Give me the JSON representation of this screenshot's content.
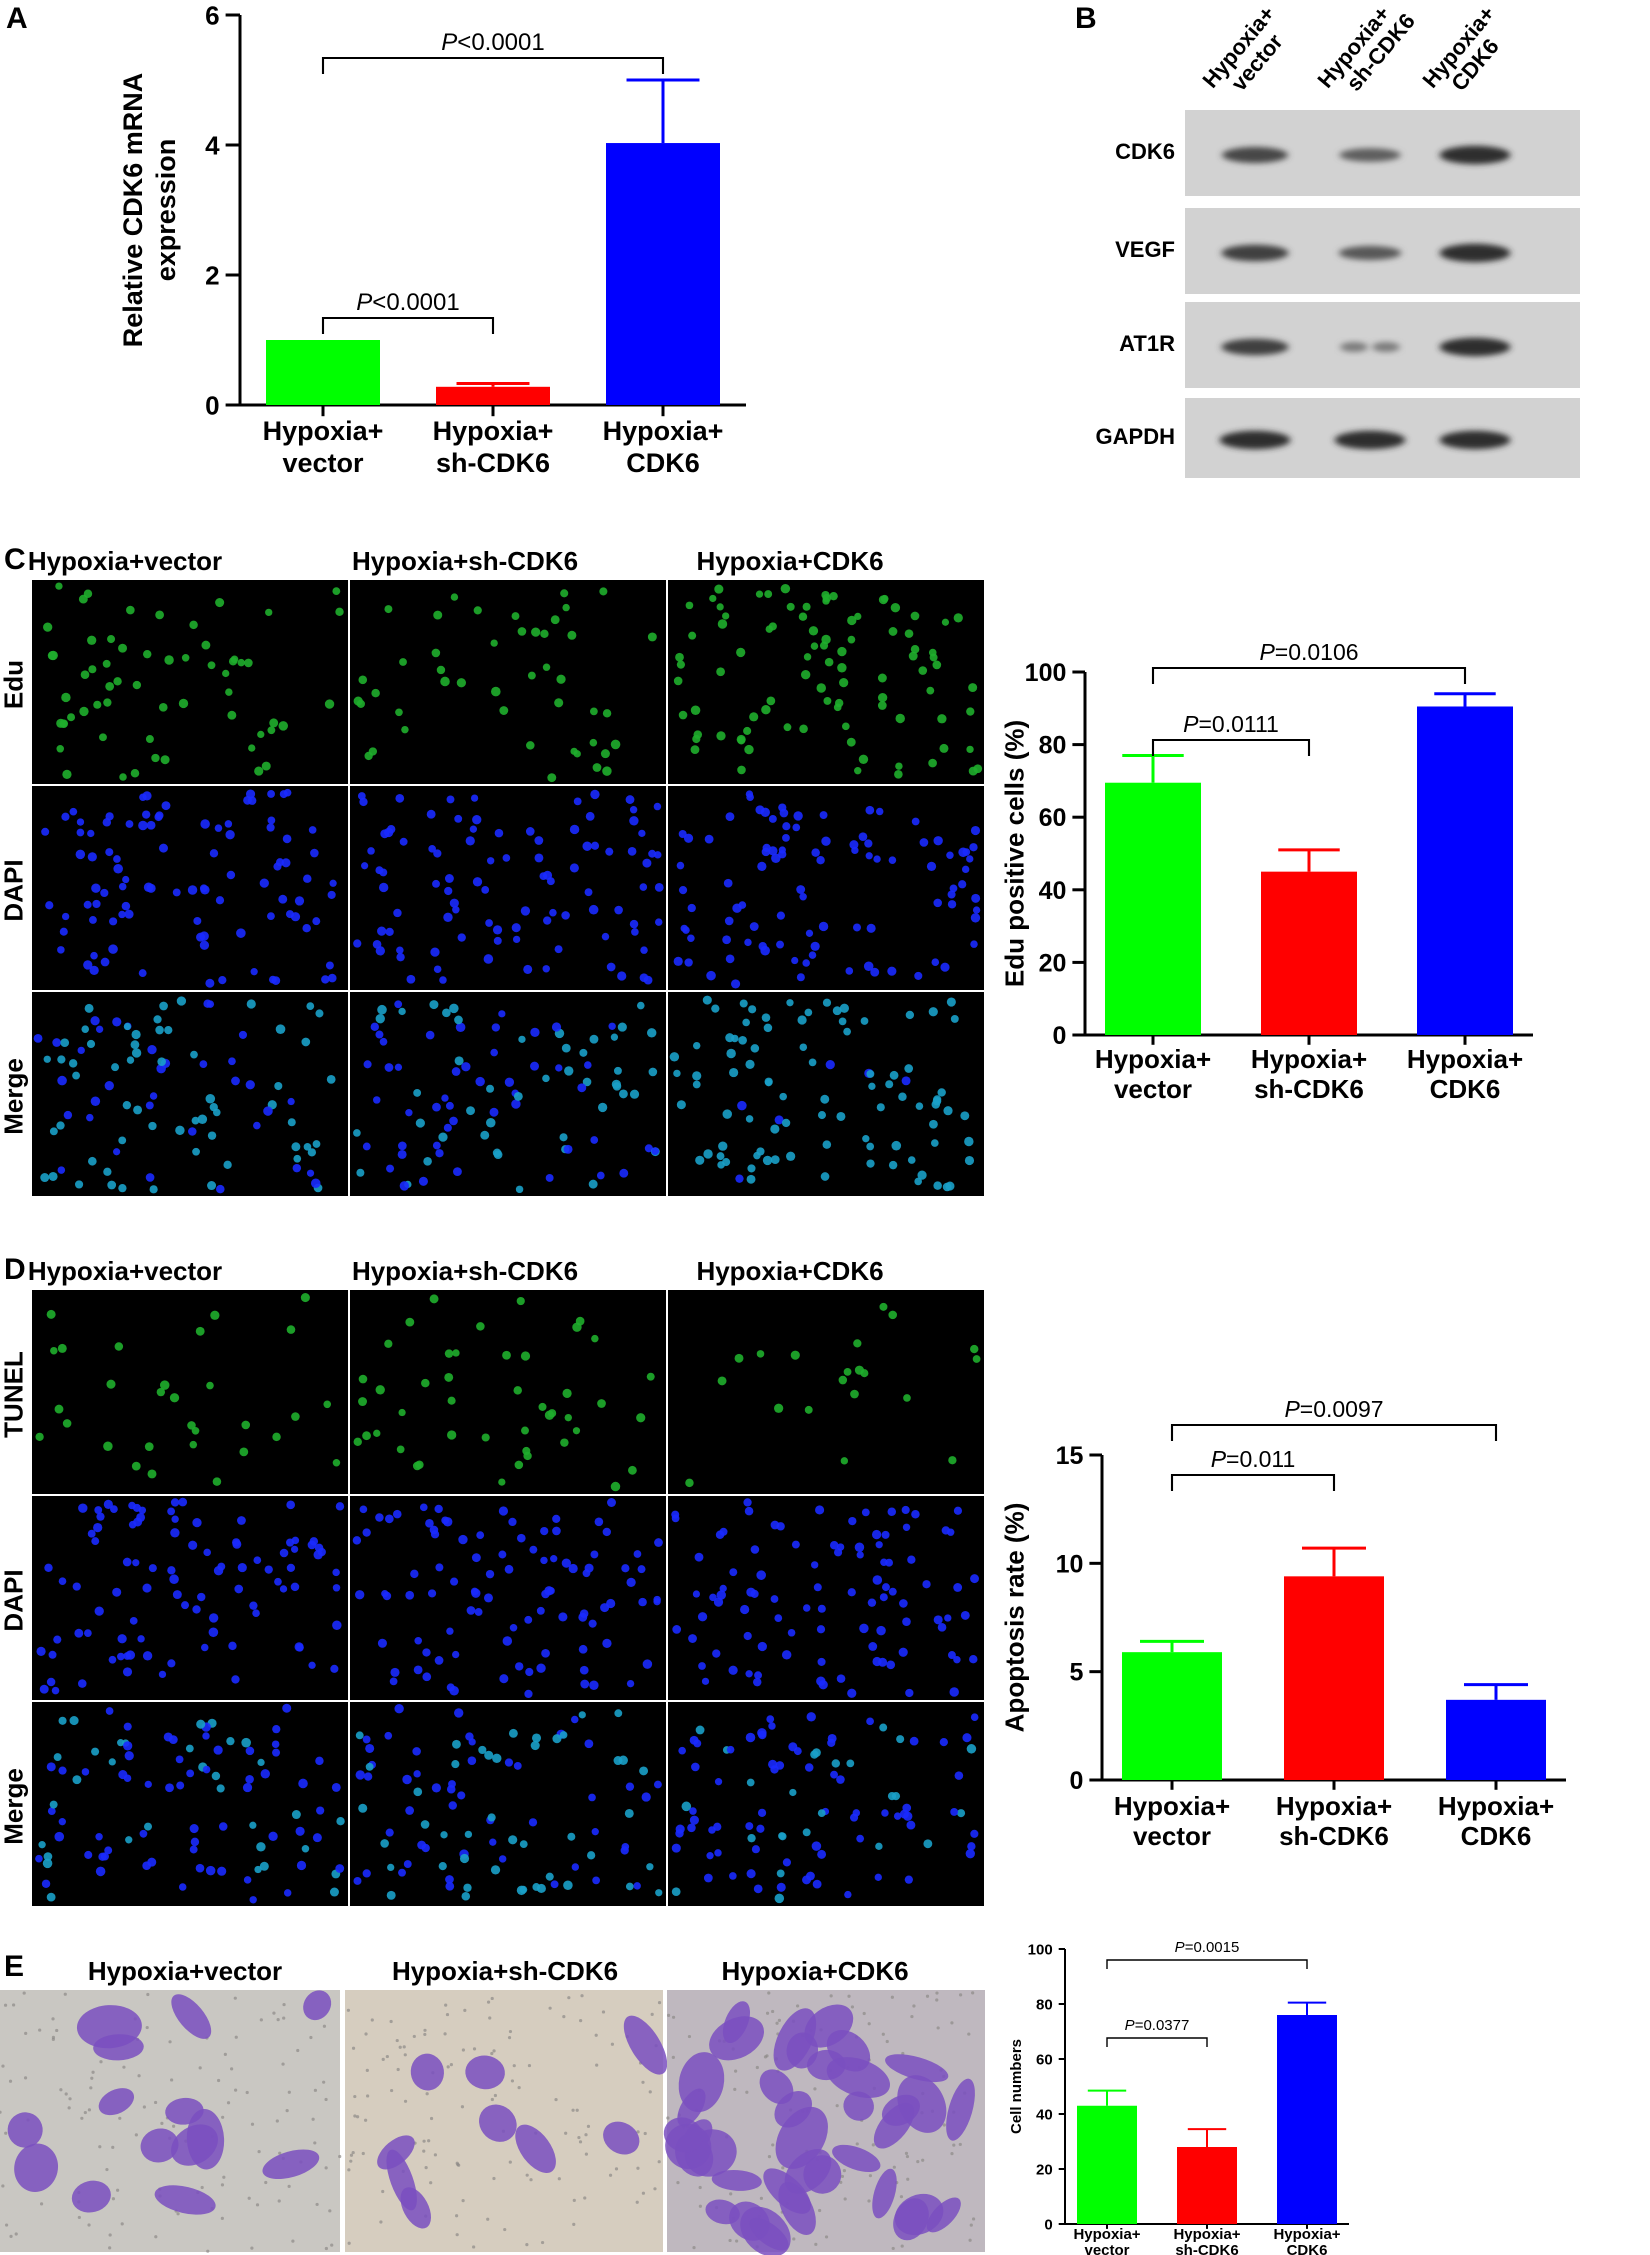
{
  "panels": {
    "A": "A",
    "B": "B",
    "C": "C",
    "D": "D",
    "E": "E"
  },
  "groups": [
    "Hypoxia+vector",
    "Hypoxia+sh-CDK6",
    "Hypoxia+CDK6"
  ],
  "blot": {
    "lanes": [
      {
        "line1": "Hypoxia+",
        "line2": "vector"
      },
      {
        "line1": "Hypoxia+",
        "line2": "sh-CDK6"
      },
      {
        "line1": "Hypoxia+",
        "line2": "CDK6"
      }
    ],
    "rows": [
      "CDK6",
      "VEGF",
      "AT1R",
      "GAPDH"
    ],
    "band_intensity": [
      [
        0.75,
        0.55,
        0.95
      ],
      [
        0.8,
        0.6,
        0.95
      ],
      [
        0.8,
        0.3,
        0.95
      ],
      [
        0.95,
        0.95,
        0.95
      ]
    ]
  },
  "edu_panel": {
    "rows": [
      "Edu",
      "DAPI",
      "Merge"
    ]
  },
  "tunel_panel": {
    "rows": [
      "TUNEL",
      "DAPI",
      "Merge"
    ]
  },
  "colors": {
    "green": "#00ff00",
    "red": "#ff0000",
    "blue": "#0000ff"
  },
  "chart_data": [
    {
      "id": "A",
      "type": "bar",
      "categories": [
        [
          "Hypoxia+",
          "vector"
        ],
        [
          "Hypoxia+",
          "sh-CDK6"
        ],
        [
          "Hypoxia+",
          "CDK6"
        ]
      ],
      "values": [
        1.0,
        0.28,
        4.03
      ],
      "errors": [
        0,
        0.05,
        0.97
      ],
      "ylabel": [
        "Relative CDK6 mRNA",
        "expression"
      ],
      "ylim": [
        0,
        6
      ],
      "yticks": [
        0,
        2,
        4,
        6
      ],
      "annotations": [
        {
          "from": 0,
          "to": 2,
          "italic": "P",
          "text": "<0.0001"
        },
        {
          "from": 0,
          "to": 1,
          "italic": "P",
          "text": "<0.0001"
        }
      ]
    },
    {
      "id": "C",
      "type": "bar",
      "categories": [
        [
          "Hypoxia+",
          "vector"
        ],
        [
          "Hypoxia+",
          "sh-CDK6"
        ],
        [
          "Hypoxia+",
          "CDK6"
        ]
      ],
      "values": [
        69.5,
        45,
        90.5
      ],
      "errors": [
        7.5,
        6,
        3.5
      ],
      "ylabel": [
        "Edu positive cells (%)"
      ],
      "ylim": [
        0,
        100
      ],
      "yticks": [
        0,
        20,
        40,
        60,
        80,
        100
      ],
      "annotations": [
        {
          "from": 0,
          "to": 2,
          "italic": "P",
          "text": "=0.0106"
        },
        {
          "from": 0,
          "to": 1,
          "italic": "P",
          "text": "=0.0111"
        }
      ]
    },
    {
      "id": "D",
      "type": "bar",
      "categories": [
        [
          "Hypoxia+",
          "vector"
        ],
        [
          "Hypoxia+",
          "sh-CDK6"
        ],
        [
          "Hypoxia+",
          "CDK6"
        ]
      ],
      "values": [
        5.9,
        9.4,
        3.7
      ],
      "errors": [
        0.5,
        1.3,
        0.7
      ],
      "ylabel": [
        "Apoptosis rate (%)"
      ],
      "ylim": [
        0,
        15
      ],
      "yticks": [
        0,
        5,
        10,
        15
      ],
      "annotations": [
        {
          "from": 0,
          "to": 2,
          "italic": "P",
          "text": "=0.0097"
        },
        {
          "from": 0,
          "to": 1,
          "italic": "P",
          "text": "=0.011"
        }
      ]
    },
    {
      "id": "E",
      "type": "bar",
      "categories": [
        [
          "Hypoxia+",
          "vector"
        ],
        [
          "Hypoxia+",
          "sh-CDK6"
        ],
        [
          "Hypoxia+",
          "CDK6"
        ]
      ],
      "values": [
        43,
        28,
        76
      ],
      "errors": [
        5.5,
        6.5,
        4.5
      ],
      "ylabel": [
        "Cell numbers"
      ],
      "ylim": [
        0,
        100
      ],
      "yticks": [
        0,
        20,
        40,
        60,
        80,
        100
      ],
      "annotations": [
        {
          "from": 0,
          "to": 2,
          "italic": "P",
          "text": "=0.0015"
        },
        {
          "from": 0,
          "to": 1,
          "italic": "P",
          "text": "=0.0377"
        }
      ]
    }
  ]
}
